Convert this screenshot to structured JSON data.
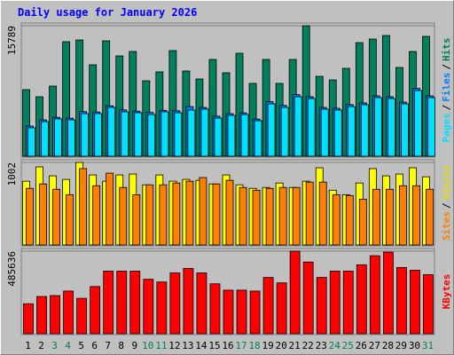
{
  "chart_data": [
    {
      "type": "bar",
      "title": "Daily usage for January 2026",
      "legend_separator": "/",
      "ylim": [
        0,
        15789
      ],
      "yticks": [
        15789
      ],
      "series": [
        {
          "name": "Hits",
          "color": "#00805c",
          "values": [
            8055,
            7196,
            8485,
            13855,
            14069,
            11062,
            13962,
            12136,
            12673,
            9129,
            10203,
            12781,
            10310,
            9344,
            11707,
            10096,
            12458,
            8807,
            11707,
            8807,
            11707,
            15789,
            9666,
            9236,
            10633,
            13747,
            14177,
            14606,
            10740,
            12673,
            14499
          ]
        },
        {
          "name": "Files",
          "color": "#0080ff",
          "values": [
            3650,
            4400,
            4700,
            4600,
            5400,
            5350,
            6100,
            5600,
            5450,
            5300,
            5550,
            5500,
            6000,
            5900,
            4850,
            5150,
            5250,
            4500,
            6600,
            6150,
            7450,
            7200,
            5900,
            5800,
            6250,
            6450,
            7300,
            7200,
            6550,
            8200,
            7300
          ]
        },
        {
          "name": "Pages",
          "color": "#00e0ff",
          "values": [
            3437,
            4189,
            4511,
            4403,
            5155,
            5155,
            5907,
            5370,
            5263,
            5048,
            5370,
            5263,
            5585,
            5692,
            4618,
            4940,
            5048,
            4296,
            6337,
            5907,
            7196,
            6981,
            5692,
            5585,
            6014,
            6229,
            7088,
            6981,
            6337,
            7948,
            7088
          ]
        }
      ]
    },
    {
      "type": "bar",
      "legend_separator": "/",
      "ylim": [
        0,
        1002
      ],
      "yticks": [
        1002
      ],
      "series": [
        {
          "name": "Visits",
          "color": "#ffff00",
          "values": [
            774,
            948,
            839,
            796,
            1002,
            850,
            774,
            850,
            861,
            730,
            850,
            774,
            796,
            785,
            741,
            850,
            730,
            687,
            698,
            752,
            698,
            774,
            937,
            665,
            610,
            752,
            927,
            839,
            861,
            937,
            828
          ]
        },
        {
          "name": "Sites",
          "color": "#ff8000",
          "values": [
            687,
            741,
            676,
            610,
            927,
            719,
            872,
            698,
            610,
            730,
            730,
            752,
            774,
            818,
            741,
            785,
            698,
            665,
            687,
            698,
            698,
            763,
            763,
            610,
            600,
            556,
            676,
            676,
            719,
            719,
            676
          ]
        }
      ]
    },
    {
      "type": "bar",
      "ylim": [
        0,
        485636
      ],
      "yticks": [
        485636
      ],
      "categories": [
        "1",
        "2",
        "3",
        "4",
        "5",
        "6",
        "7",
        "8",
        "9",
        "10",
        "11",
        "12",
        "13",
        "14",
        "15",
        "16",
        "17",
        "18",
        "19",
        "20",
        "21",
        "22",
        "23",
        "24",
        "25",
        "26",
        "27",
        "28",
        "29",
        "30",
        "31"
      ],
      "category_colors": [
        "#000000",
        "#000000",
        "#00805c",
        "#00805c",
        "#000000",
        "#000000",
        "#000000",
        "#000000",
        "#000000",
        "#00805c",
        "#00805c",
        "#000000",
        "#000000",
        "#000000",
        "#000000",
        "#000000",
        "#00805c",
        "#00805c",
        "#000000",
        "#000000",
        "#000000",
        "#000000",
        "#000000",
        "#00805c",
        "#00805c",
        "#000000",
        "#000000",
        "#000000",
        "#000000",
        "#000000",
        "#00805c"
      ],
      "series": [
        {
          "name": "KBytes",
          "color": "#ff0000",
          "values": [
            176121,
            218817,
            224154,
            250839,
            208143,
            277524,
            368253,
            368253,
            368253,
            320220,
            304209,
            357579,
            384264,
            357579,
            293535,
            256176,
            256176,
            250839,
            330894,
            298872,
            485636,
            421623,
            330894,
            368253,
            368253,
            405612,
            458982,
            480000,
            389601,
            373590,
            346905
          ]
        }
      ]
    }
  ]
}
